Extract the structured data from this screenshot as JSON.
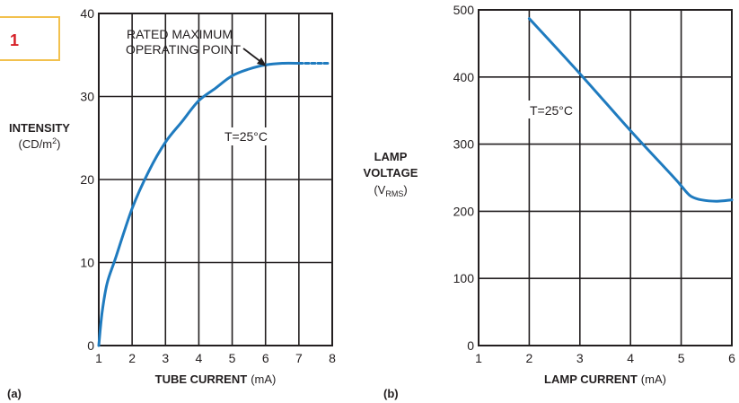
{
  "figure_number": "1",
  "colors": {
    "curve": "#1f7bbf",
    "badge_border": "#f2c14e",
    "badge_text": "#d62027",
    "ink": "#231f20"
  },
  "chart_data": [
    {
      "panel": "(a)",
      "type": "line",
      "xlabel_bold": "TUBE CURRENT",
      "xlabel_unit": "(mA)",
      "ylabel_bold": "INTENSITY",
      "ylabel_unit": "(CD/m",
      "ylabel_sup": "2",
      "ylabel_close": ")",
      "xlim": [
        1,
        8
      ],
      "ylim": [
        0,
        40
      ],
      "xticks": [
        1,
        2,
        3,
        4,
        5,
        6,
        7,
        8
      ],
      "yticks": [
        0,
        10,
        20,
        30,
        40
      ],
      "grid": true,
      "annotation_line1": "RATED MAXIMUM",
      "annotation_line2": "OPERATING POINT",
      "annotation_target": [
        6,
        34
      ],
      "condition": "T=25°C",
      "condition_at": [
        4.5,
        24
      ],
      "series": [
        {
          "style": "solid",
          "x": [
            1.0,
            1.1,
            1.25,
            1.5,
            2.0,
            2.5,
            3.0,
            3.5,
            4.0,
            4.5,
            5.0,
            5.5,
            6.0,
            6.5,
            7.0
          ],
          "y": [
            0.0,
            4.0,
            7.5,
            10.5,
            16.5,
            21.0,
            24.5,
            27.0,
            29.5,
            31.0,
            32.5,
            33.3,
            33.8,
            34.0,
            34.0
          ]
        },
        {
          "style": "dashed",
          "x": [
            7.0,
            7.3,
            7.6,
            7.9
          ],
          "y": [
            34.0,
            34.0,
            34.0,
            34.0
          ]
        }
      ]
    },
    {
      "panel": "(b)",
      "type": "line",
      "xlabel_bold": "LAMP CURRENT",
      "xlabel_unit": "(mA)",
      "ylabel_bold1": "LAMP",
      "ylabel_bold2": "VOLTAGE",
      "ylabel_unit": "(V",
      "ylabel_sub": "RMS",
      "ylabel_close": ")",
      "xlim": [
        1,
        6
      ],
      "ylim": [
        0,
        500
      ],
      "xticks": [
        1,
        2,
        3,
        4,
        5,
        6
      ],
      "yticks": [
        0,
        100,
        200,
        300,
        400,
        500
      ],
      "grid": true,
      "condition": "T=25°C",
      "condition_at": [
        2.85,
        350
      ],
      "series": [
        {
          "style": "solid",
          "x": [
            2.0,
            3.0,
            4.0,
            4.8,
            5.0,
            5.1,
            5.2,
            5.4,
            5.7,
            6.0
          ],
          "y": [
            487,
            405,
            320,
            255,
            238,
            229,
            222,
            217,
            215,
            217
          ]
        }
      ]
    }
  ]
}
